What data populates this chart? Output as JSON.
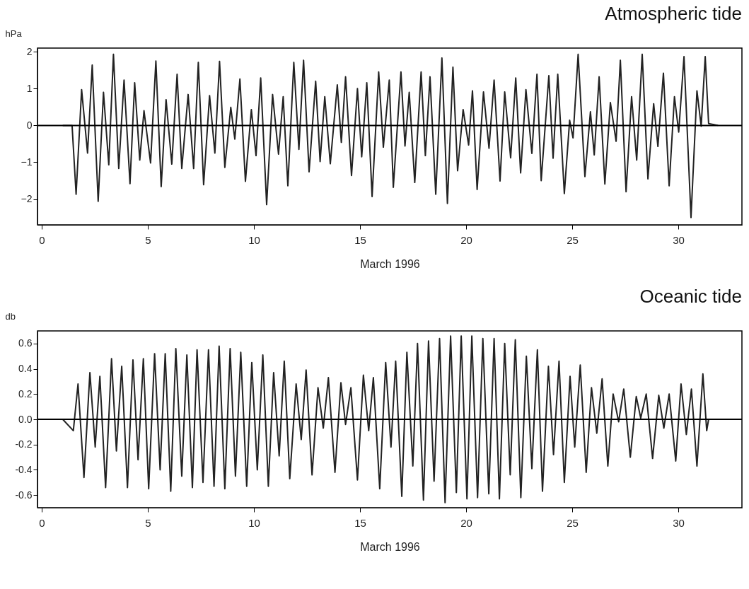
{
  "chart_data": [
    {
      "type": "line",
      "title": "Atmospheric tide",
      "ylabel": "hPa",
      "xlabel": "March 1996",
      "color": "#222222",
      "x": [
        0.99,
        1.43,
        1.62,
        1.88,
        2.16,
        2.38,
        2.66,
        2.91,
        3.16,
        3.38,
        3.63,
        3.88,
        4.16,
        4.38,
        4.62,
        4.82,
        5.13,
        5.38,
        5.63,
        5.86,
        6.13,
        6.38,
        6.6,
        6.9,
        7.16,
        7.38,
        7.63,
        7.91,
        8.16,
        8.38,
        8.63,
        8.91,
        9.1,
        9.34,
        9.6,
        9.88,
        10.1,
        10.32,
        10.6,
        10.88,
        11.16,
        11.38,
        11.6,
        11.88,
        12.12,
        12.34,
        12.6,
        12.91,
        13.12,
        13.34,
        13.6,
        13.93,
        14.12,
        14.32,
        14.6,
        14.88,
        15.08,
        15.32,
        15.57,
        15.88,
        16.1,
        16.38,
        16.57,
        16.93,
        17.12,
        17.32,
        17.58,
        17.88,
        18.08,
        18.3,
        18.57,
        18.86,
        19.12,
        19.38,
        19.6,
        19.86,
        20.12,
        20.3,
        20.52,
        20.82,
        21.08,
        21.32,
        21.6,
        21.82,
        22.1,
        22.34,
        22.57,
        22.82,
        23.1,
        23.34,
        23.54,
        23.9,
        24.1,
        24.32,
        24.63,
        24.88,
        25.04,
        25.28,
        25.6,
        25.86,
        26.04,
        26.27,
        26.54,
        26.8,
        27.07,
        27.27,
        27.54,
        27.8,
        28.04,
        28.3,
        28.57,
        28.84,
        29.04,
        29.3,
        29.57,
        29.82,
        30.02,
        30.27,
        30.6,
        30.88,
        31.08,
        31.27,
        31.43,
        31.88
      ],
      "values": [
        0,
        0,
        -1.87,
        0.97,
        -0.75,
        1.64,
        -2.06,
        0.9,
        -1.07,
        1.93,
        -1.17,
        1.23,
        -1.58,
        1.16,
        -0.94,
        0.4,
        -1.02,
        1.75,
        -1.66,
        0.7,
        -1.05,
        1.39,
        -1.17,
        0.84,
        -1.17,
        1.71,
        -1.61,
        0.81,
        -0.75,
        1.74,
        -1.14,
        0.49,
        -0.37,
        1.26,
        -1.52,
        0.43,
        -0.82,
        1.29,
        -2.15,
        0.84,
        -0.78,
        0.78,
        -1.64,
        1.71,
        -0.65,
        1.77,
        -1.26,
        1.2,
        -0.98,
        0.78,
        -1.04,
        1.1,
        -0.46,
        1.32,
        -1.36,
        1.0,
        -0.85,
        1.16,
        -1.93,
        1.45,
        -0.59,
        1.23,
        -1.68,
        1.45,
        -0.56,
        0.9,
        -1.55,
        1.45,
        -0.82,
        1.32,
        -1.87,
        1.83,
        -2.12,
        1.58,
        -1.23,
        0.43,
        -0.53,
        0.94,
        -1.74,
        0.91,
        -0.62,
        1.23,
        -1.51,
        0.91,
        -0.88,
        1.29,
        -1.29,
        0.97,
        -0.76,
        1.39,
        -1.5,
        1.35,
        -0.89,
        1.39,
        -1.85,
        0.14,
        -0.34,
        1.93,
        -1.39,
        0.37,
        -0.8,
        1.32,
        -1.59,
        0.62,
        -0.43,
        1.77,
        -1.8,
        0.78,
        -0.94,
        1.93,
        -1.45,
        0.59,
        -0.57,
        1.42,
        -1.64,
        0.78,
        -0.18,
        1.87,
        -2.5,
        0.94,
        -0.02,
        1.87,
        0.05,
        0
      ],
      "xlim": [
        -0.2,
        33
      ],
      "xticks": [
        0,
        5,
        10,
        15,
        20,
        25,
        30
      ],
      "ylim": [
        -2.7,
        2.1
      ],
      "yticks": [
        -2,
        -1,
        0,
        1,
        2
      ],
      "ref_lines": [
        {
          "axis": "y",
          "value": 0
        }
      ]
    },
    {
      "type": "line",
      "title": "Oceanic tide",
      "ylabel": "db",
      "xlabel": "March 1996",
      "color": "#222222",
      "x": [
        0.99,
        1.49,
        1.71,
        1.99,
        2.27,
        2.52,
        2.74,
        3.01,
        3.29,
        3.52,
        3.77,
        4.04,
        4.3,
        4.54,
        4.79,
        5.04,
        5.32,
        5.58,
        5.82,
        6.08,
        6.32,
        6.6,
        6.84,
        7.1,
        7.32,
        7.6,
        7.86,
        8.12,
        8.36,
        8.63,
        8.88,
        9.13,
        9.38,
        9.66,
        9.9,
        10.16,
        10.42,
        10.68,
        10.93,
        11.19,
        11.43,
        11.69,
        11.99,
        12.23,
        12.46,
        12.74,
        13.02,
        13.27,
        13.51,
        13.82,
        14.1,
        14.32,
        14.57,
        14.88,
        15.16,
        15.41,
        15.63,
        15.93,
        16.21,
        16.46,
        16.68,
        16.97,
        17.21,
        17.49,
        17.71,
        17.99,
        18.23,
        18.49,
        18.75,
        19.01,
        19.27,
        19.54,
        19.77,
        20.04,
        20.27,
        20.54,
        20.79,
        21.07,
        21.32,
        21.57,
        21.82,
        22.08,
        22.32,
        22.58,
        22.84,
        23.1,
        23.36,
        23.6,
        23.88,
        24.12,
        24.38,
        24.63,
        24.9,
        25.12,
        25.38,
        25.66,
        25.91,
        26.16,
        26.41,
        26.68,
        26.93,
        27.19,
        27.43,
        27.74,
        28.02,
        28.23,
        28.49,
        28.79,
        29.08,
        29.32,
        29.57,
        29.88,
        30.13,
        30.38,
        30.62,
        30.88,
        31.16,
        31.34,
        31.43,
        31.88
      ],
      "values": [
        0,
        -0.09,
        0.28,
        -0.46,
        0.37,
        -0.22,
        0.34,
        -0.54,
        0.48,
        -0.25,
        0.42,
        -0.54,
        0.47,
        -0.32,
        0.48,
        -0.55,
        0.52,
        -0.4,
        0.52,
        -0.57,
        0.56,
        -0.45,
        0.51,
        -0.54,
        0.55,
        -0.5,
        0.55,
        -0.53,
        0.58,
        -0.55,
        0.56,
        -0.45,
        0.53,
        -0.53,
        0.45,
        -0.4,
        0.51,
        -0.53,
        0.37,
        -0.29,
        0.46,
        -0.47,
        0.28,
        -0.16,
        0.39,
        -0.44,
        0.25,
        -0.07,
        0.33,
        -0.42,
        0.29,
        -0.04,
        0.25,
        -0.48,
        0.35,
        -0.09,
        0.33,
        -0.55,
        0.45,
        -0.22,
        0.46,
        -0.61,
        0.53,
        -0.37,
        0.6,
        -0.64,
        0.62,
        -0.49,
        0.64,
        -0.66,
        0.66,
        -0.58,
        0.66,
        -0.63,
        0.66,
        -0.62,
        0.64,
        -0.59,
        0.64,
        -0.63,
        0.6,
        -0.44,
        0.63,
        -0.62,
        0.5,
        -0.39,
        0.55,
        -0.57,
        0.42,
        -0.28,
        0.46,
        -0.5,
        0.34,
        -0.22,
        0.43,
        -0.42,
        0.25,
        -0.11,
        0.32,
        -0.37,
        0.2,
        -0.02,
        0.24,
        -0.3,
        0.18,
        0.01,
        0.2,
        -0.31,
        0.19,
        -0.07,
        0.2,
        -0.33,
        0.28,
        -0.12,
        0.24,
        -0.37,
        0.36,
        -0.09,
        0,
        0
      ],
      "xlim": [
        -0.2,
        33
      ],
      "xticks": [
        0,
        5,
        10,
        15,
        20,
        25,
        30
      ],
      "ylim": [
        -0.7,
        0.7
      ],
      "yticks": [
        {
          "value": -0.6,
          "label": "-0.6"
        },
        {
          "value": -0.4,
          "label": "-0.4"
        },
        {
          "value": -0.2,
          "label": "-0.2"
        },
        {
          "value": 0,
          "label": "0.0"
        },
        {
          "value": 0.2,
          "label": "0.2"
        },
        {
          "value": 0.4,
          "label": "0.4"
        },
        {
          "value": 0.6,
          "label": "0.6"
        }
      ],
      "ref_lines": [
        {
          "axis": "y",
          "value": 0
        }
      ]
    }
  ]
}
